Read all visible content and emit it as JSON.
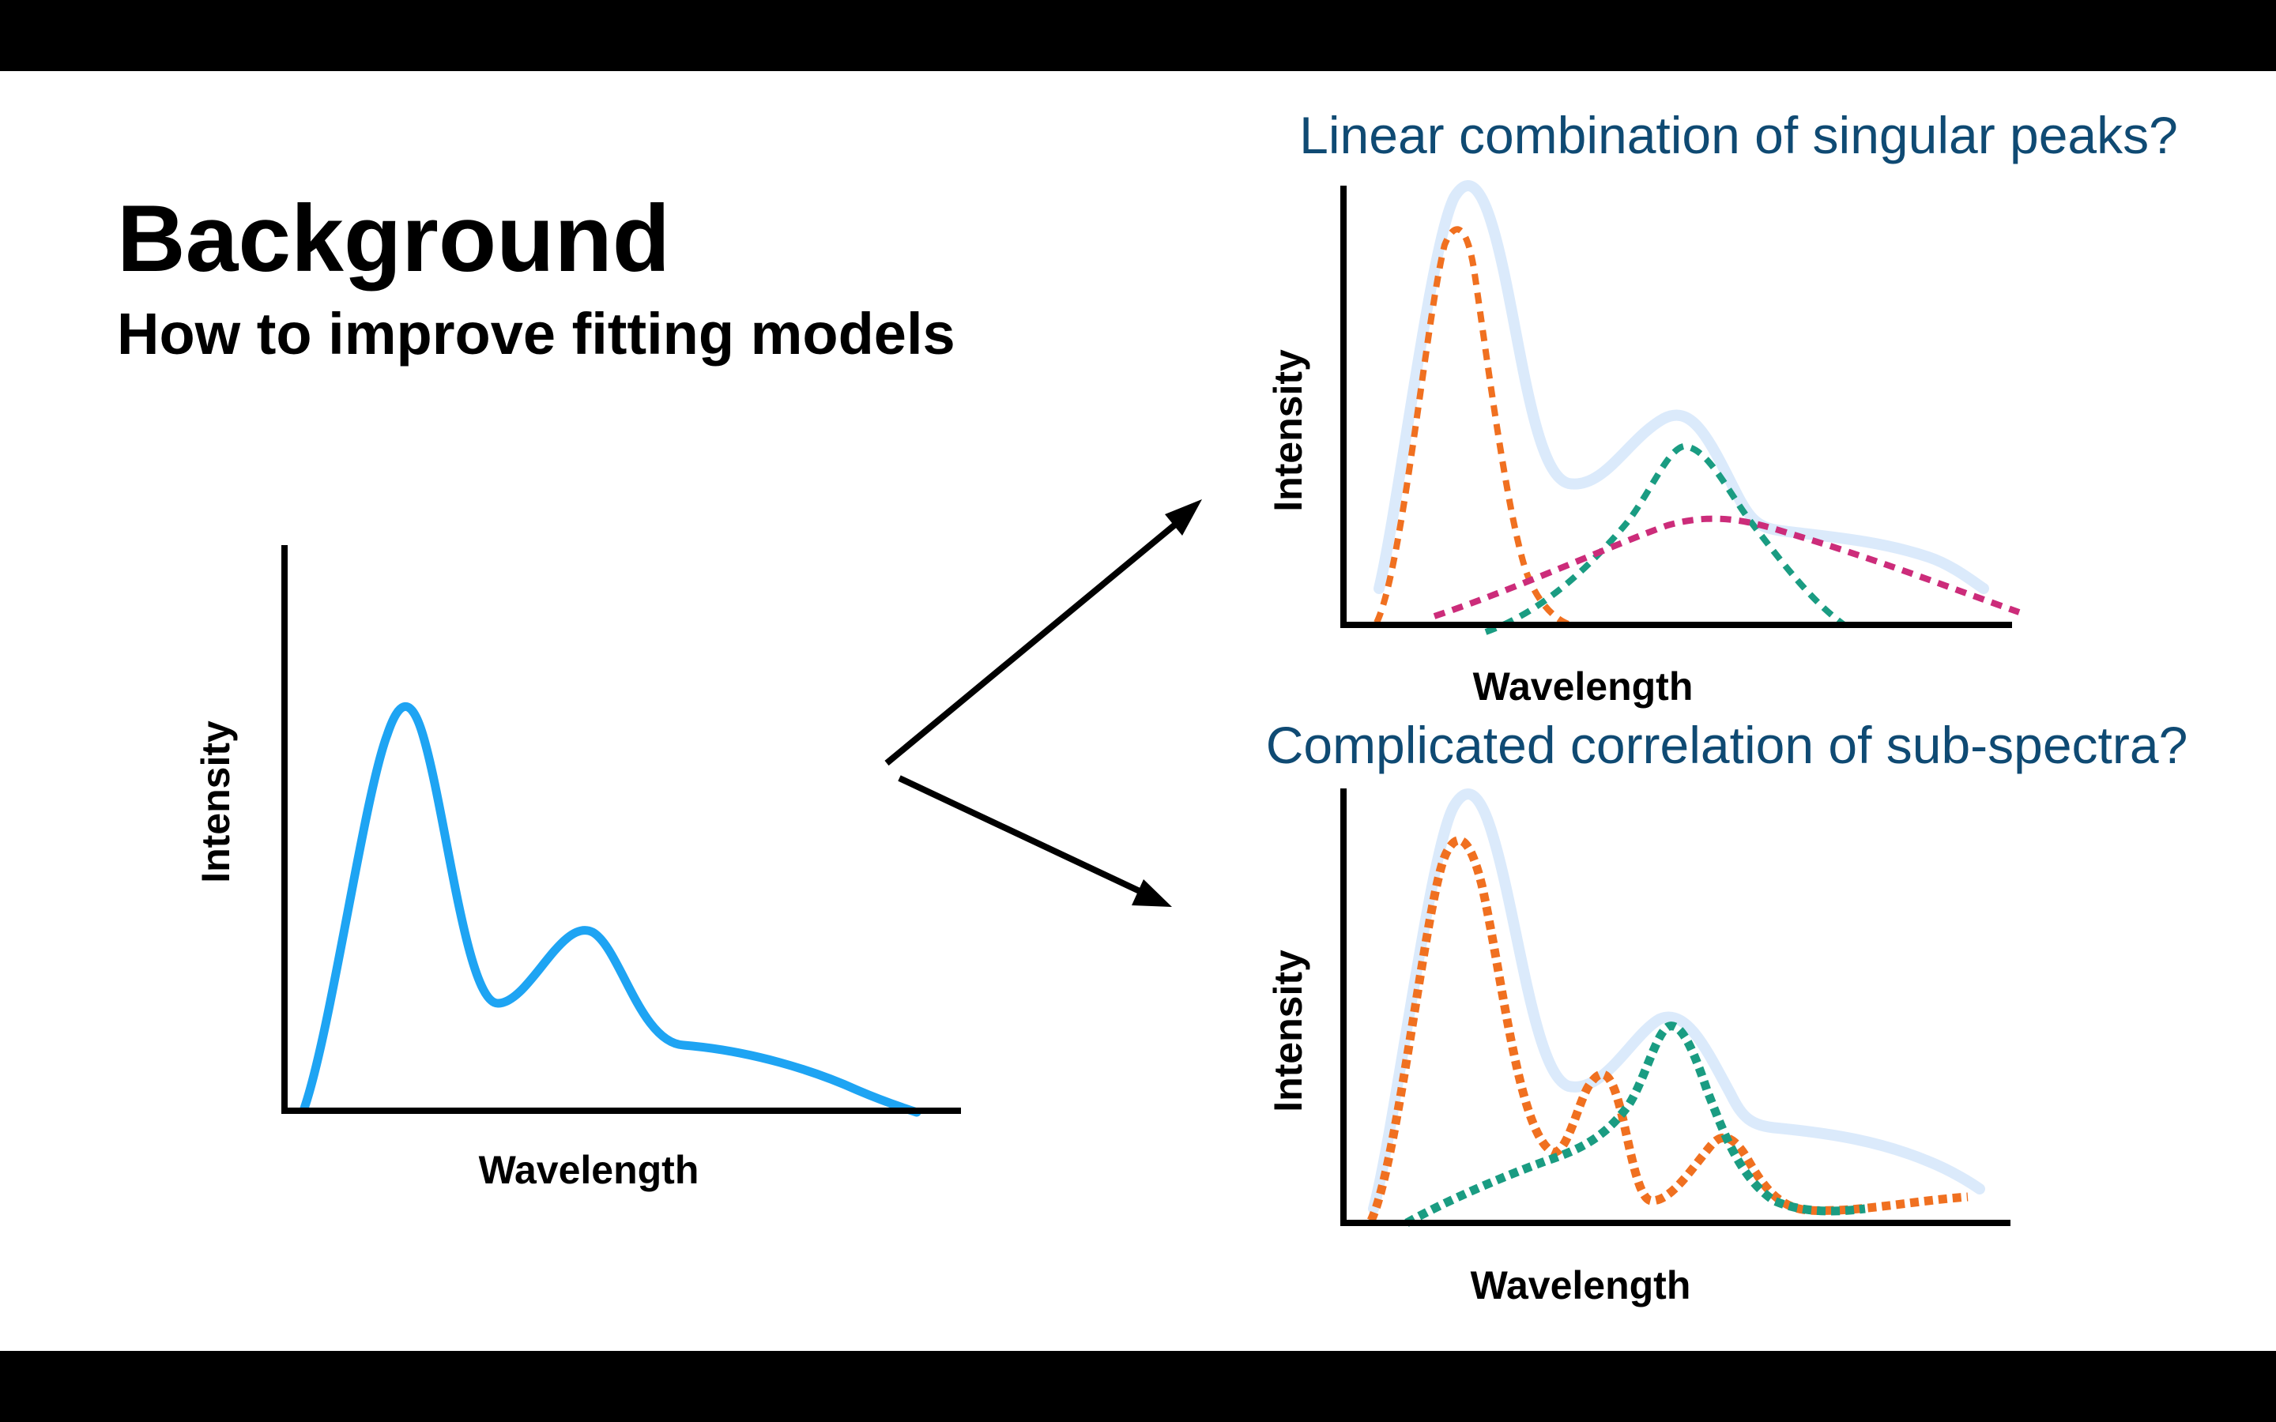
{
  "slide": {
    "title": "Background",
    "subtitle": "How to improve fitting models"
  },
  "left_plot": {
    "ylabel": "Intensity",
    "xlabel": "Wavelength"
  },
  "top_plot": {
    "heading": "Linear combination of singular peaks?",
    "ylabel": "Intensity",
    "xlabel": "Wavelength"
  },
  "bottom_plot": {
    "heading": "Complicated correlation of sub-spectra?",
    "ylabel": "Intensity",
    "xlabel": "Wavelength"
  },
  "colors": {
    "background": "#ffffff",
    "letterbox": "#000000",
    "spectrum": "#1ea4f3",
    "spectrum_faded": "#dbeafb",
    "peak_orange": "#f07020",
    "peak_teal": "#1a9c82",
    "peak_magenta": "#cc2c7a",
    "heading_blue": "#0f4a73"
  }
}
